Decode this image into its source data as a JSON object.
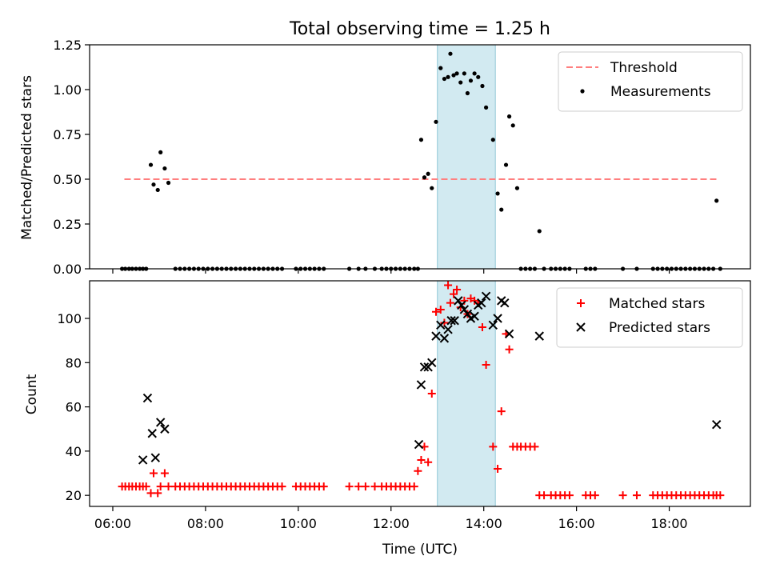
{
  "chart_data": [
    {
      "type": "scatter",
      "title": "Total observing time = 1.25 h",
      "xlabel": "",
      "ylabel": "Matched/Predicted stars",
      "ylim": [
        0,
        1.25
      ],
      "yticks": [
        0,
        0.25,
        0.5,
        0.75,
        1.0,
        1.25
      ],
      "yticklabels": [
        "0.00",
        "0.25",
        "0.50",
        "0.75",
        "1.00",
        "1.25"
      ],
      "shaded_span": {
        "x0": 13.0,
        "x1": 14.25,
        "color": "#add8e6"
      },
      "legend_position": "top-right",
      "series": [
        {
          "name": "Threshold",
          "kind": "dashed-line",
          "color": "#ff7f7f",
          "points": [
            [
              6.25,
              0.5
            ],
            [
              19.08,
              0.5
            ]
          ]
        },
        {
          "name": "Measurements",
          "kind": "dots",
          "color": "#000000",
          "points": [
            [
              6.2,
              0
            ],
            [
              6.27,
              0
            ],
            [
              6.35,
              0
            ],
            [
              6.42,
              0
            ],
            [
              6.5,
              0
            ],
            [
              6.58,
              0
            ],
            [
              6.65,
              0
            ],
            [
              6.72,
              0
            ],
            [
              6.82,
              0.58
            ],
            [
              6.88,
              0.47
            ],
            [
              6.97,
              0.44
            ],
            [
              7.03,
              0.65
            ],
            [
              7.12,
              0.56
            ],
            [
              7.2,
              0.48
            ],
            [
              7.35,
              0
            ],
            [
              7.45,
              0
            ],
            [
              7.55,
              0
            ],
            [
              7.65,
              0
            ],
            [
              7.75,
              0
            ],
            [
              7.85,
              0
            ],
            [
              7.95,
              0
            ],
            [
              8.05,
              0
            ],
            [
              8.15,
              0
            ],
            [
              8.25,
              0
            ],
            [
              8.35,
              0
            ],
            [
              8.45,
              0
            ],
            [
              8.55,
              0
            ],
            [
              8.65,
              0
            ],
            [
              8.75,
              0
            ],
            [
              8.85,
              0
            ],
            [
              8.95,
              0
            ],
            [
              9.05,
              0
            ],
            [
              9.15,
              0
            ],
            [
              9.25,
              0
            ],
            [
              9.35,
              0
            ],
            [
              9.45,
              0
            ],
            [
              9.55,
              0
            ],
            [
              9.65,
              0
            ],
            [
              9.95,
              0
            ],
            [
              10.05,
              0
            ],
            [
              10.15,
              0
            ],
            [
              10.25,
              0
            ],
            [
              10.35,
              0
            ],
            [
              10.45,
              0
            ],
            [
              10.55,
              0
            ],
            [
              11.1,
              0
            ],
            [
              11.3,
              0
            ],
            [
              11.45,
              0
            ],
            [
              11.65,
              0
            ],
            [
              11.8,
              0
            ],
            [
              11.9,
              0
            ],
            [
              12.0,
              0
            ],
            [
              12.1,
              0
            ],
            [
              12.2,
              0
            ],
            [
              12.3,
              0
            ],
            [
              12.4,
              0
            ],
            [
              12.5,
              0
            ],
            [
              12.58,
              0
            ],
            [
              12.65,
              0.72
            ],
            [
              12.72,
              0.51
            ],
            [
              12.8,
              0.53
            ],
            [
              12.88,
              0.45
            ],
            [
              12.97,
              0.82
            ],
            [
              13.07,
              1.12
            ],
            [
              13.15,
              1.06
            ],
            [
              13.23,
              1.07
            ],
            [
              13.28,
              1.2
            ],
            [
              13.35,
              1.08
            ],
            [
              13.42,
              1.09
            ],
            [
              13.5,
              1.04
            ],
            [
              13.58,
              1.09
            ],
            [
              13.65,
              0.98
            ],
            [
              13.72,
              1.05
            ],
            [
              13.8,
              1.09
            ],
            [
              13.88,
              1.07
            ],
            [
              13.97,
              1.02
            ],
            [
              14.05,
              0.9
            ],
            [
              14.2,
              0.72
            ],
            [
              14.3,
              0.42
            ],
            [
              14.38,
              0.33
            ],
            [
              14.48,
              0.58
            ],
            [
              14.55,
              0.85
            ],
            [
              14.63,
              0.8
            ],
            [
              14.72,
              0.45
            ],
            [
              14.8,
              0
            ],
            [
              14.9,
              0
            ],
            [
              15.0,
              0
            ],
            [
              15.1,
              0
            ],
            [
              15.2,
              0.21
            ],
            [
              15.3,
              0
            ],
            [
              15.45,
              0
            ],
            [
              15.55,
              0
            ],
            [
              15.65,
              0
            ],
            [
              15.75,
              0
            ],
            [
              15.85,
              0
            ],
            [
              16.2,
              0
            ],
            [
              16.3,
              0
            ],
            [
              16.4,
              0
            ],
            [
              17.0,
              0
            ],
            [
              17.3,
              0
            ],
            [
              17.65,
              0
            ],
            [
              17.75,
              0
            ],
            [
              17.85,
              0
            ],
            [
              17.95,
              0
            ],
            [
              18.05,
              0
            ],
            [
              18.15,
              0
            ],
            [
              18.25,
              0
            ],
            [
              18.35,
              0
            ],
            [
              18.45,
              0
            ],
            [
              18.55,
              0
            ],
            [
              18.65,
              0
            ],
            [
              18.75,
              0
            ],
            [
              18.85,
              0
            ],
            [
              18.95,
              0
            ],
            [
              19.02,
              0.38
            ],
            [
              19.1,
              0
            ]
          ]
        }
      ]
    },
    {
      "type": "scatter",
      "title": "",
      "xlabel": "Time (UTC)",
      "ylabel": "Count",
      "xlim": [
        5.5,
        19.75
      ],
      "xticks": [
        6,
        8,
        10,
        12,
        14,
        16,
        18
      ],
      "xticklabels": [
        "06:00",
        "08:00",
        "10:00",
        "12:00",
        "14:00",
        "16:00",
        "18:00"
      ],
      "ylim": [
        15,
        117
      ],
      "yticks": [
        20,
        40,
        60,
        80,
        100
      ],
      "yticklabels": [
        "20",
        "40",
        "60",
        "80",
        "100"
      ],
      "shaded_span": {
        "x0": 13.0,
        "x1": 14.25,
        "color": "#add8e6"
      },
      "legend_position": "top-right",
      "series": [
        {
          "name": "Matched stars",
          "kind": "plus",
          "color": "#ff0000",
          "points": [
            [
              6.2,
              24
            ],
            [
              6.27,
              24
            ],
            [
              6.35,
              24
            ],
            [
              6.42,
              24
            ],
            [
              6.5,
              24
            ],
            [
              6.58,
              24
            ],
            [
              6.65,
              24
            ],
            [
              6.72,
              24
            ],
            [
              6.82,
              21
            ],
            [
              6.88,
              30
            ],
            [
              6.97,
              21
            ],
            [
              7.03,
              24
            ],
            [
              7.12,
              30
            ],
            [
              7.2,
              24
            ],
            [
              7.35,
              24
            ],
            [
              7.45,
              24
            ],
            [
              7.55,
              24
            ],
            [
              7.65,
              24
            ],
            [
              7.75,
              24
            ],
            [
              7.85,
              24
            ],
            [
              7.95,
              24
            ],
            [
              8.05,
              24
            ],
            [
              8.15,
              24
            ],
            [
              8.25,
              24
            ],
            [
              8.35,
              24
            ],
            [
              8.45,
              24
            ],
            [
              8.55,
              24
            ],
            [
              8.65,
              24
            ],
            [
              8.75,
              24
            ],
            [
              8.85,
              24
            ],
            [
              8.95,
              24
            ],
            [
              9.05,
              24
            ],
            [
              9.15,
              24
            ],
            [
              9.25,
              24
            ],
            [
              9.35,
              24
            ],
            [
              9.45,
              24
            ],
            [
              9.55,
              24
            ],
            [
              9.65,
              24
            ],
            [
              9.95,
              24
            ],
            [
              10.05,
              24
            ],
            [
              10.15,
              24
            ],
            [
              10.25,
              24
            ],
            [
              10.35,
              24
            ],
            [
              10.45,
              24
            ],
            [
              10.55,
              24
            ],
            [
              11.1,
              24
            ],
            [
              11.3,
              24
            ],
            [
              11.45,
              24
            ],
            [
              11.65,
              24
            ],
            [
              11.8,
              24
            ],
            [
              11.9,
              24
            ],
            [
              12.0,
              24
            ],
            [
              12.1,
              24
            ],
            [
              12.2,
              24
            ],
            [
              12.3,
              24
            ],
            [
              12.4,
              24
            ],
            [
              12.5,
              24
            ],
            [
              12.58,
              31
            ],
            [
              12.65,
              36
            ],
            [
              12.72,
              42
            ],
            [
              12.8,
              35
            ],
            [
              12.88,
              66
            ],
            [
              12.97,
              103
            ],
            [
              13.07,
              104
            ],
            [
              13.15,
              98
            ],
            [
              13.23,
              115
            ],
            [
              13.28,
              107
            ],
            [
              13.35,
              111
            ],
            [
              13.42,
              113
            ],
            [
              13.5,
              105
            ],
            [
              13.58,
              108
            ],
            [
              13.65,
              102
            ],
            [
              13.72,
              109
            ],
            [
              13.8,
              108
            ],
            [
              13.88,
              107
            ],
            [
              13.97,
              96
            ],
            [
              14.05,
              79
            ],
            [
              14.2,
              42
            ],
            [
              14.3,
              32
            ],
            [
              14.38,
              58
            ],
            [
              14.48,
              93
            ],
            [
              14.55,
              86
            ],
            [
              14.63,
              42
            ],
            [
              14.72,
              42
            ],
            [
              14.8,
              42
            ],
            [
              14.9,
              42
            ],
            [
              15.0,
              42
            ],
            [
              15.1,
              42
            ],
            [
              15.2,
              20
            ],
            [
              15.3,
              20
            ],
            [
              15.45,
              20
            ],
            [
              15.55,
              20
            ],
            [
              15.65,
              20
            ],
            [
              15.75,
              20
            ],
            [
              15.85,
              20
            ],
            [
              16.2,
              20
            ],
            [
              16.3,
              20
            ],
            [
              16.4,
              20
            ],
            [
              17.0,
              20
            ],
            [
              17.3,
              20
            ],
            [
              17.65,
              20
            ],
            [
              17.75,
              20
            ],
            [
              17.85,
              20
            ],
            [
              17.95,
              20
            ],
            [
              18.05,
              20
            ],
            [
              18.15,
              20
            ],
            [
              18.25,
              20
            ],
            [
              18.35,
              20
            ],
            [
              18.45,
              20
            ],
            [
              18.55,
              20
            ],
            [
              18.65,
              20
            ],
            [
              18.75,
              20
            ],
            [
              18.85,
              20
            ],
            [
              18.95,
              20
            ],
            [
              19.02,
              20
            ],
            [
              19.1,
              20
            ]
          ]
        },
        {
          "name": "Predicted stars",
          "kind": "cross",
          "color": "#000000",
          "points": [
            [
              6.65,
              36
            ],
            [
              6.75,
              64
            ],
            [
              6.85,
              48
            ],
            [
              6.92,
              37
            ],
            [
              7.03,
              53
            ],
            [
              7.12,
              50
            ],
            [
              12.6,
              43
            ],
            [
              12.65,
              70
            ],
            [
              12.72,
              78
            ],
            [
              12.8,
              78
            ],
            [
              12.88,
              80
            ],
            [
              12.97,
              92
            ],
            [
              13.07,
              97
            ],
            [
              13.15,
              91
            ],
            [
              13.23,
              95
            ],
            [
              13.3,
              99
            ],
            [
              13.37,
              99
            ],
            [
              13.45,
              108
            ],
            [
              13.52,
              106
            ],
            [
              13.58,
              104
            ],
            [
              13.65,
              102
            ],
            [
              13.72,
              100
            ],
            [
              13.8,
              101
            ],
            [
              13.88,
              106
            ],
            [
              13.95,
              107
            ],
            [
              14.05,
              110
            ],
            [
              14.2,
              97
            ],
            [
              14.3,
              100
            ],
            [
              14.38,
              108
            ],
            [
              14.45,
              107
            ],
            [
              14.55,
              93
            ],
            [
              15.2,
              92
            ],
            [
              19.02,
              52
            ]
          ]
        }
      ]
    }
  ]
}
